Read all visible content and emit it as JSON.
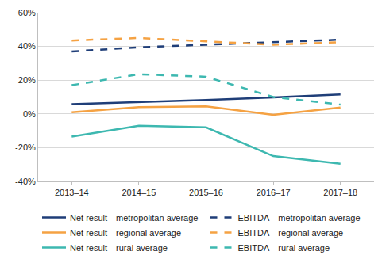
{
  "chart_data": {
    "type": "line",
    "categories": [
      "2013–14",
      "2014–15",
      "2015–16",
      "2016–17",
      "2017–18"
    ],
    "ylim": [
      -40,
      60
    ],
    "yticks": [
      {
        "value": -40,
        "label": "-40%"
      },
      {
        "value": -20,
        "label": "-20%"
      },
      {
        "value": 0,
        "label": "0%"
      },
      {
        "value": 20,
        "label": "20%"
      },
      {
        "value": 40,
        "label": "40%"
      },
      {
        "value": 60,
        "label": "60%"
      }
    ],
    "grid": true,
    "legend": "bottom",
    "series": [
      {
        "name": "Net result—metropolitan average",
        "color": "#1f3e78",
        "line_style": "solid",
        "values": [
          5.8,
          7,
          8.2,
          9.8,
          11.5
        ]
      },
      {
        "name": "EBITDA—metropolitan average",
        "color": "#1f3e78",
        "line_style": "dash",
        "values": [
          37,
          39.5,
          41,
          42.5,
          44
        ]
      },
      {
        "name": "Net result—regional average",
        "color": "#f5a243",
        "line_style": "solid",
        "values": [
          1,
          4,
          4.5,
          -0.5,
          3.8
        ]
      },
      {
        "name": "EBITDA—regional average",
        "color": "#f5a243",
        "line_style": "dash",
        "values": [
          43.5,
          45,
          43,
          41,
          42.5
        ]
      },
      {
        "name": "Net result—rural average",
        "color": "#3db8b0",
        "line_style": "solid",
        "values": [
          -13.5,
          -7,
          -8,
          -25,
          -29.5
        ]
      },
      {
        "name": "EBITDA—rural average",
        "color": "#3db8b0",
        "line_style": "dash",
        "values": [
          17,
          23.5,
          22,
          10,
          5.5
        ]
      }
    ]
  }
}
